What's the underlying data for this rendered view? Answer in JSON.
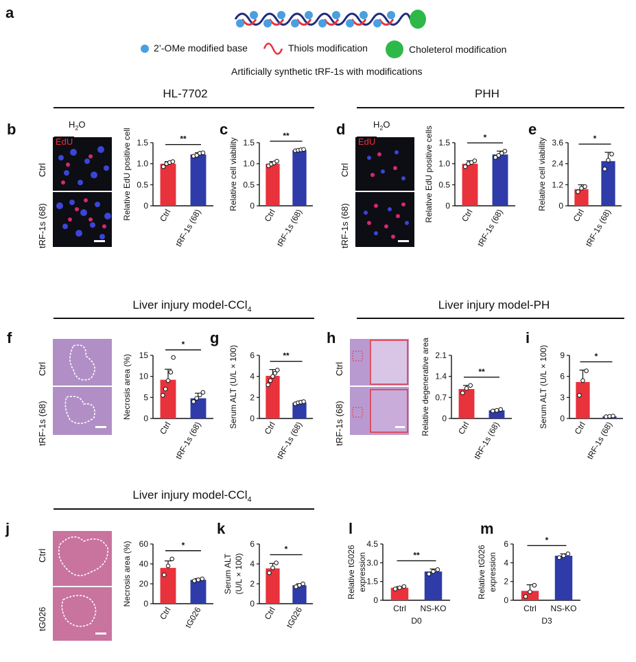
{
  "panel_a": {
    "label": "a",
    "legend": {
      "base": "2’-OMe modified base",
      "thiols": "Thiols modification",
      "cholesterol": "Choleterol modification"
    },
    "caption": "Artificially synthetic tRF-1s with modifications"
  },
  "sections": {
    "hl7702": "HL-7702",
    "phh": "PHH",
    "ccl4_top": "Liver injury model-CCl",
    "ph": "Liver injury model-PH",
    "ccl4_bottom": "Liver injury model-CCl",
    "sub4": "4"
  },
  "colors": {
    "ctrl": "#E8323C",
    "treated": "#2E3BA8",
    "edu": "#E8323C"
  },
  "micro": {
    "h2o2": "H",
    "h2o2_sub": "2",
    "h2o2_tail": "O",
    "edu": "EdU",
    "ctrl": "Ctrl",
    "trf": "tRF-1s (68)",
    "tg026": "tG026"
  },
  "chart_data": [
    {
      "id": "b",
      "type": "bar",
      "panel_label": "b",
      "categories": [
        "Ctrl",
        "tRF-1s (68)"
      ],
      "values": [
        1.0,
        1.22
      ],
      "errors": [
        0.05,
        0.04
      ],
      "points": [
        [
          0.93,
          1.0,
          1.03,
          1.05
        ],
        [
          1.18,
          1.2,
          1.25,
          1.26
        ]
      ],
      "ylabel": "Relative EdU positive cell",
      "ylim": [
        0,
        1.5
      ],
      "yticks": [
        "0",
        "0.5",
        "1.0",
        "1.5"
      ],
      "sig": "**"
    },
    {
      "id": "c",
      "type": "bar",
      "panel_label": "c",
      "categories": [
        "Ctrl",
        "tRF-1s (68)"
      ],
      "values": [
        1.0,
        1.32
      ],
      "errors": [
        0.05,
        0.02
      ],
      "points": [
        [
          0.95,
          0.99,
          1.02,
          1.06
        ],
        [
          1.31,
          1.32,
          1.33,
          1.34
        ]
      ],
      "ylabel": "Relative cell viability",
      "ylim": [
        0,
        1.5
      ],
      "yticks": [
        "0",
        "0.5",
        "1.0",
        "1.5"
      ],
      "sig": "**"
    },
    {
      "id": "d",
      "type": "bar",
      "panel_label": "d",
      "categories": [
        "Ctrl",
        "tRF-1s (68)"
      ],
      "values": [
        1.0,
        1.22
      ],
      "errors": [
        0.07,
        0.08
      ],
      "points": [
        [
          0.93,
          1.0,
          1.03,
          1.07
        ],
        [
          1.15,
          1.2,
          1.25,
          1.3
        ]
      ],
      "ylabel": "Relative EdU positive cells",
      "ylim": [
        0,
        1.5
      ],
      "yticks": [
        "0",
        "0.5",
        "1.0",
        "1.5"
      ],
      "sig": "*"
    },
    {
      "id": "e",
      "type": "bar",
      "panel_label": "e",
      "categories": [
        "Ctrl",
        "tRF-1s (68)"
      ],
      "values": [
        0.95,
        2.55
      ],
      "errors": [
        0.25,
        0.5
      ],
      "points": [
        [
          0.8,
          1.0,
          1.1
        ],
        [
          2.1,
          2.6,
          2.95
        ]
      ],
      "ylabel": "Relative cell viability",
      "ylim": [
        0,
        3.6
      ],
      "yticks": [
        "0",
        "1.2",
        "2.4",
        "3.6"
      ],
      "sig": "*"
    },
    {
      "id": "f",
      "type": "bar",
      "panel_label": "f",
      "categories": [
        "Ctrl",
        "tRF-1s (68)"
      ],
      "values": [
        9.2,
        4.8
      ],
      "errors": [
        2.5,
        1.2
      ],
      "points": [
        [
          5.5,
          7.0,
          9.0,
          11.0,
          14.5
        ],
        [
          4.0,
          4.8,
          5.6,
          6.2
        ]
      ],
      "ylabel": "Necrosis area (%)",
      "ylim": [
        0,
        15
      ],
      "yticks": [
        "0",
        "5",
        "10",
        "15"
      ],
      "sig": "*"
    },
    {
      "id": "g",
      "type": "bar",
      "panel_label": "g",
      "categories": [
        "Ctrl",
        "tRF-1s (68)"
      ],
      "values": [
        4.05,
        1.5
      ],
      "errors": [
        0.6,
        0.1
      ],
      "points": [
        [
          3.2,
          3.6,
          4.0,
          4.3,
          4.6
        ],
        [
          1.4,
          1.5,
          1.55,
          1.6
        ]
      ],
      "ylabel": "Serum ALT (U/L × 100)",
      "ylim": [
        0,
        6
      ],
      "yticks": [
        "0",
        "2",
        "4",
        "6"
      ],
      "sig": "**"
    },
    {
      "id": "h",
      "type": "bar",
      "panel_label": "h",
      "categories": [
        "Ctrl",
        "tRF-1s (68)"
      ],
      "values": [
        0.98,
        0.27
      ],
      "errors": [
        0.12,
        0.03
      ],
      "points": [
        [
          0.85,
          1.0,
          1.1
        ],
        [
          0.25,
          0.27,
          0.3
        ]
      ],
      "ylabel": "Relative degenerative area",
      "ylim": [
        0,
        2.1
      ],
      "yticks": [
        "0",
        "0.7",
        "1.4",
        "2.1"
      ],
      "sig": "**"
    },
    {
      "id": "i",
      "type": "bar",
      "panel_label": "i",
      "categories": [
        "Ctrl",
        "tRF-1s (68)"
      ],
      "values": [
        5.2,
        0.3
      ],
      "errors": [
        1.7,
        0.08
      ],
      "points": [
        [
          3.3,
          5.4,
          6.8
        ],
        [
          0.25,
          0.3,
          0.35
        ]
      ],
      "ylabel": "Serum ALT (U/L × 100)",
      "ylim": [
        0,
        9
      ],
      "yticks": [
        "0",
        "3",
        "6",
        "9"
      ],
      "sig": "*"
    },
    {
      "id": "j",
      "type": "bar",
      "panel_label": "j",
      "categories": [
        "Ctrl",
        "tG026"
      ],
      "values": [
        36,
        24
      ],
      "errors": [
        7,
        1.2
      ],
      "points": [
        [
          29,
          38,
          45
        ],
        [
          23,
          24,
          25
        ]
      ],
      "ylabel": "Necrosis area (%)",
      "ylim": [
        0,
        60
      ],
      "yticks": [
        "0",
        "20",
        "40",
        "60"
      ],
      "sig": "*"
    },
    {
      "id": "k",
      "type": "bar",
      "panel_label": "k",
      "categories": [
        "Ctrl",
        "tG026"
      ],
      "values": [
        3.55,
        1.85
      ],
      "errors": [
        0.5,
        0.15
      ],
      "points": [
        [
          3.1,
          3.6,
          4.1
        ],
        [
          1.7,
          1.85,
          2.0
        ]
      ],
      "ylabel": "Serum ALT",
      "ylabel2": "(U/L × 100)",
      "ylim": [
        0,
        6
      ],
      "yticks": [
        "0",
        "2",
        "4",
        "6"
      ],
      "sig": "*"
    },
    {
      "id": "l",
      "type": "bar",
      "panel_label": "l",
      "categories": [
        "Ctrl",
        "NS-KO"
      ],
      "group_label": "D0",
      "values": [
        1.0,
        2.3
      ],
      "errors": [
        0.1,
        0.2
      ],
      "points": [
        [
          0.9,
          1.0,
          1.1
        ],
        [
          2.1,
          2.3,
          2.45
        ]
      ],
      "ylabel": "Relative tG026",
      "ylabel2": "expression",
      "ylim": [
        0,
        4.5
      ],
      "yticks": [
        "0",
        "1.5",
        "3.0",
        "4.5"
      ],
      "sig": "**"
    },
    {
      "id": "m",
      "type": "bar",
      "panel_label": "m",
      "categories": [
        "Ctrl",
        "NS-KO"
      ],
      "group_label": "D3",
      "values": [
        1.0,
        4.75
      ],
      "errors": [
        0.65,
        0.2
      ],
      "points": [
        [
          0.4,
          0.9,
          1.6
        ],
        [
          4.55,
          4.75,
          4.95
        ]
      ],
      "ylabel": "Relative tG026",
      "ylabel2": "expression",
      "ylim": [
        0,
        6
      ],
      "yticks": [
        "0",
        "2",
        "4",
        "6"
      ],
      "sig": "*"
    }
  ]
}
